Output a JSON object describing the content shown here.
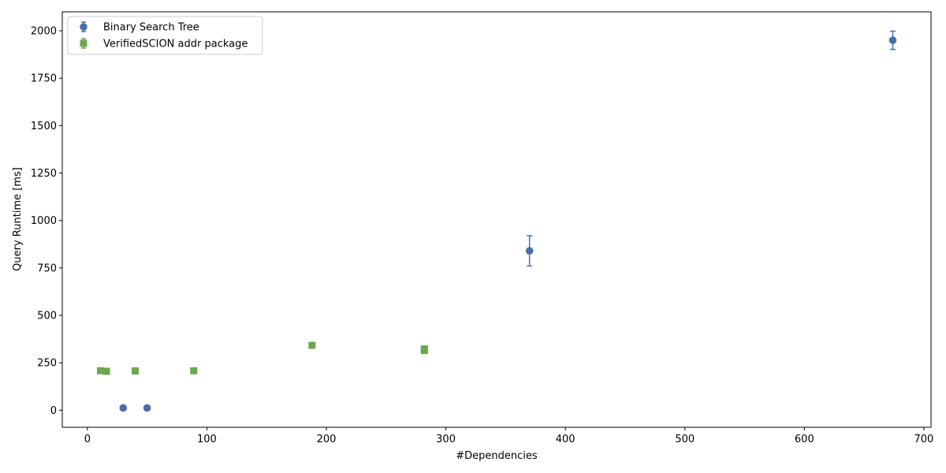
{
  "chart_data": {
    "type": "scatter",
    "title": "",
    "xlabel": "#Dependencies",
    "ylabel": "Query Runtime [ms]",
    "xlim": [
      -21,
      706
    ],
    "ylim": [
      -90,
      2100
    ],
    "xticks": [
      0,
      100,
      200,
      300,
      400,
      500,
      600,
      700
    ],
    "yticks": [
      0,
      250,
      500,
      750,
      1000,
      1250,
      1500,
      1750,
      2000
    ],
    "grid": false,
    "legend_position": "top-left",
    "series": [
      {
        "name": "Binary Search Tree",
        "marker": "circle",
        "color": "#4c6ea8",
        "points": [
          {
            "x": 30,
            "y": 12,
            "err": 0
          },
          {
            "x": 50,
            "y": 12,
            "err": 0
          },
          {
            "x": 370,
            "y": 840,
            "err": 80
          },
          {
            "x": 674,
            "y": 1950,
            "err": 48
          }
        ]
      },
      {
        "name": "VerifiedSCION addr package",
        "marker": "square",
        "color": "#6aa84f",
        "points": [
          {
            "x": 11,
            "y": 208,
            "err": 0
          },
          {
            "x": 16,
            "y": 205,
            "err": 0
          },
          {
            "x": 40,
            "y": 207,
            "err": 0
          },
          {
            "x": 89,
            "y": 208,
            "err": 0
          },
          {
            "x": 188,
            "y": 342,
            "err": 0
          },
          {
            "x": 282,
            "y": 323,
            "err": 0
          },
          {
            "x": 282,
            "y": 315,
            "err": 0
          }
        ]
      }
    ]
  }
}
